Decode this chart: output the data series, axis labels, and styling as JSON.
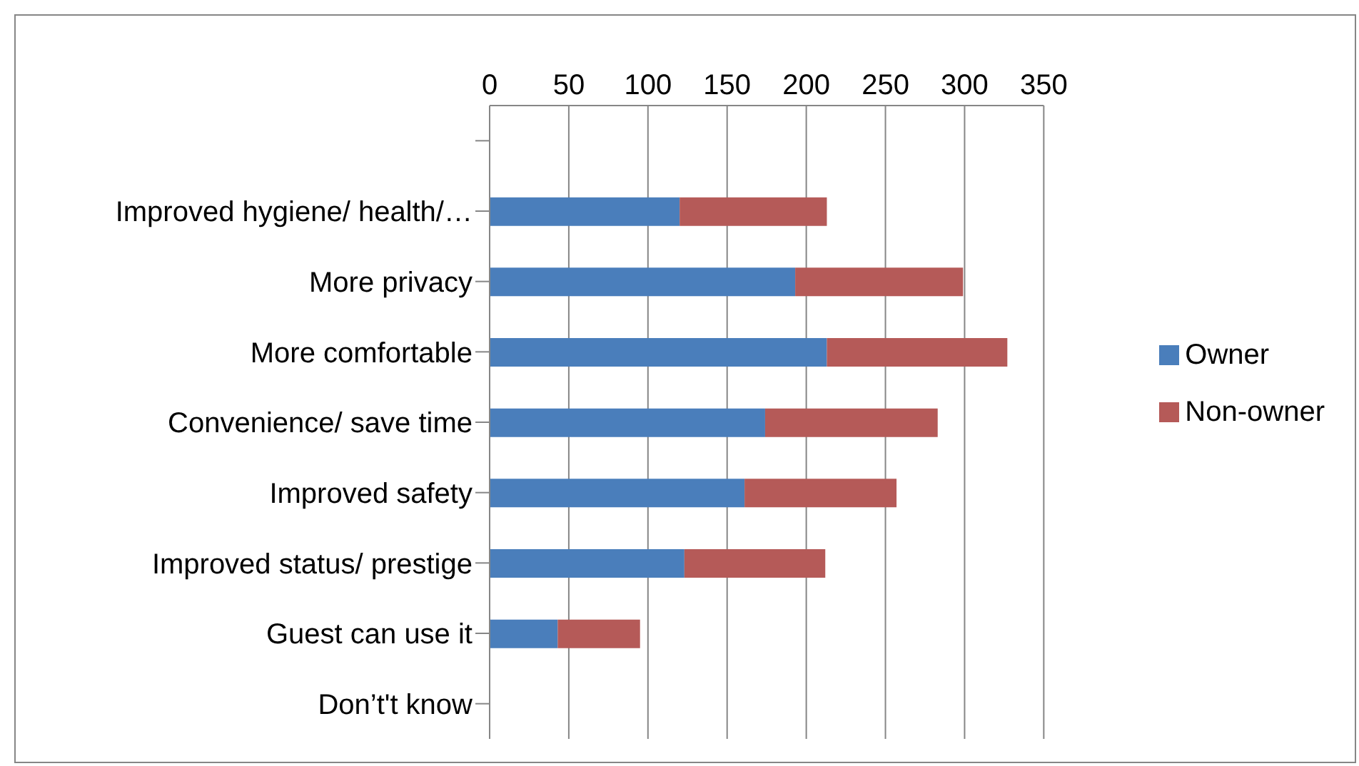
{
  "chart_data": {
    "type": "bar",
    "orientation": "horizontal",
    "stacked": true,
    "categories": [
      null,
      "Improved hygiene/ health/…",
      "More privacy",
      "More comfortable",
      "Convenience/ save time",
      "Improved safety",
      "Improved status/ prestige",
      "Guest can use it",
      "Don’t't know"
    ],
    "series": [
      {
        "name": "Owner",
        "color": "#4a7ebb",
        "values": [
          null,
          120,
          193,
          213,
          174,
          161,
          123,
          43,
          0
        ]
      },
      {
        "name": "Non-owner",
        "color": "#b55a58",
        "values": [
          null,
          93,
          106,
          114,
          109,
          96,
          89,
          52,
          0
        ]
      }
    ],
    "xlim": [
      0,
      350
    ],
    "xticks": [
      0,
      50,
      100,
      150,
      200,
      250,
      300,
      350
    ],
    "grid": "x",
    "legend": "right"
  }
}
